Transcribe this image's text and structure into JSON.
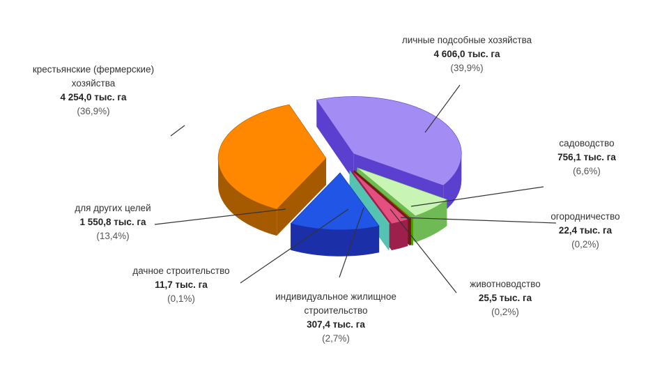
{
  "chart_data": {
    "type": "pie",
    "title": "",
    "unit": "тыс. га",
    "slices": [
      {
        "name": "личные подсобные хозяйства",
        "value_label": "4 606,0 тыс. га",
        "value": 4606.0,
        "percent_label": "(39,9%)",
        "percent": 39.9,
        "color": "#a38cf3",
        "side_color": "#5b3fcf"
      },
      {
        "name": "садоводство",
        "value_label": "756,1 тыс. га",
        "value": 756.1,
        "percent_label": "(6,6%)",
        "percent": 6.6,
        "color": "#c9f5b4",
        "side_color": "#6fba55"
      },
      {
        "name": "огородничество",
        "value_label": "22,4 тыс. га",
        "value": 22.4,
        "percent_label": "(0,2%)",
        "percent": 0.2,
        "color": "#7bd800",
        "side_color": "#4c9a00"
      },
      {
        "name": "животноводство",
        "value_label": "25,5 тыс. га",
        "value": 25.5,
        "percent_label": "(0,2%)",
        "percent": 0.2,
        "color": "#b63c36",
        "side_color": "#6e1a16"
      },
      {
        "name": "индивидуальное жилищное строительство",
        "name_lines": [
          "индивидуальное жилищное",
          "строительство"
        ],
        "value_label": "307,4 тыс. га",
        "value": 307.4,
        "percent_label": "(2,7%)",
        "percent": 2.7,
        "color": "#e34f7e",
        "side_color": "#9c1f4c"
      },
      {
        "name": "дачное строительство",
        "value_label": "11,7 тыс. га",
        "value": 11.7,
        "percent_label": "(0,1%)",
        "percent": 0.1,
        "color": "#c8f1ea",
        "side_color": "#55c3b2"
      },
      {
        "name": "для других целей",
        "value_label": "1 550,8 тыс. га",
        "value": 1550.8,
        "percent_label": "(13,4%)",
        "percent": 13.4,
        "color": "#2155e6",
        "side_color": "#1a2fa8"
      },
      {
        "name": "крестьянские (фермерские) хозяйства",
        "name_lines": [
          "крестьянские (фермерские)",
          "хозяйства"
        ],
        "value_label": "4 254,0 тыс. га",
        "value": 4254.0,
        "percent_label": "(36,9%)",
        "percent": 36.9,
        "color": "#ff8800",
        "side_color": "#a65a00"
      }
    ]
  }
}
